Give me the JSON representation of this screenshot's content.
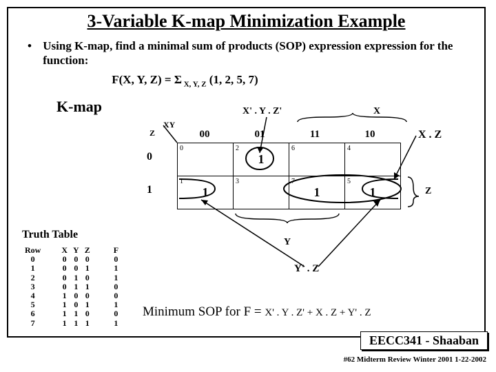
{
  "title": "3-Variable K-map Minimization Example",
  "bullet_text": "Using K-map,  find a minimal sum of products (SOP) expression expression for the function:",
  "func_left": "F(X, Y, Z) = ",
  "func_sigma": "Σ",
  "func_sub": " X, Y, Z",
  "func_right": " (1, 2, 5, 7)",
  "kmap_label": "K-map",
  "xy": "XY",
  "z": "Z",
  "col_headers": [
    "00",
    "01",
    "11",
    "10"
  ],
  "row_headers": [
    "0",
    "1"
  ],
  "cells": {
    "r0": [
      {
        "idx": "0",
        "val": ""
      },
      {
        "idx": "2",
        "val": "1"
      },
      {
        "idx": "6",
        "val": ""
      },
      {
        "idx": "4",
        "val": ""
      }
    ],
    "r1": [
      {
        "idx": "1",
        "val": "1"
      },
      {
        "idx": "3",
        "val": ""
      },
      {
        "idx": "7",
        "val": "1"
      },
      {
        "idx": "5",
        "val": "1"
      }
    ]
  },
  "ann_top": "X' . Y . Z'",
  "ann_right_x": "X",
  "ann_right_xz": "X . Z",
  "ann_right_z": "Z",
  "ann_bottom_y": "Y",
  "ann_yz": "Y' . Z",
  "truth_title": "Truth Table",
  "truth": {
    "headers": [
      "Row",
      "X",
      "Y",
      "Z",
      "F"
    ],
    "rows": [
      [
        "0",
        "0",
        "0",
        "0",
        "0"
      ],
      [
        "1",
        "0",
        "0",
        "1",
        "1"
      ],
      [
        "2",
        "0",
        "1",
        "0",
        "1"
      ],
      [
        "3",
        "0",
        "1",
        "1",
        "0"
      ],
      [
        "4",
        "1",
        "0",
        "0",
        "0"
      ],
      [
        "5",
        "1",
        "0",
        "1",
        "1"
      ],
      [
        "6",
        "1",
        "1",
        "0",
        "0"
      ],
      [
        "7",
        "1",
        "1",
        "1",
        "1"
      ]
    ]
  },
  "min_label": "Minimum SOP for  F  =  ",
  "min_terms": "X' . Y . Z'  +   X . Z   +   Y' . Z",
  "footer_course": "EECC341 - Shaaban",
  "footer_note": "#62    Midterm  Review   Winter 2001  1-22-2002"
}
